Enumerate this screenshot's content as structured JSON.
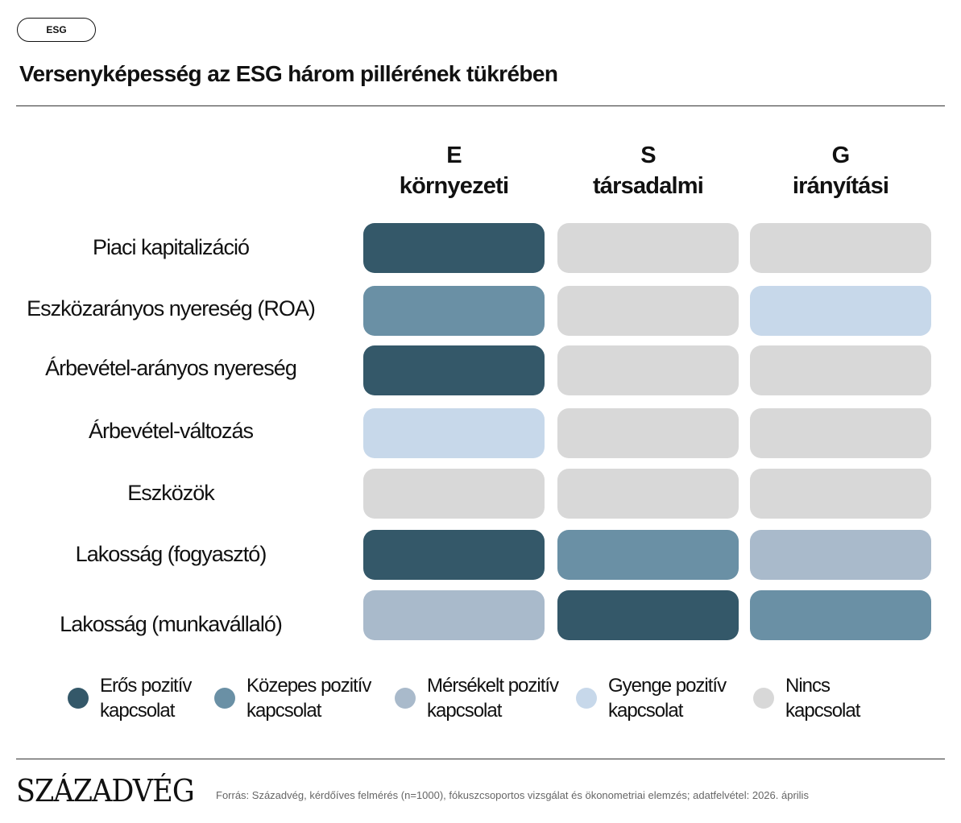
{
  "tag": "ESG",
  "title": "Versenyképesség az ESG három pillérének tükrében",
  "chart_data": {
    "type": "heatmap",
    "columns": [
      {
        "letter": "E",
        "name": "környezeti"
      },
      {
        "letter": "S",
        "name": "társadalmi"
      },
      {
        "letter": "G",
        "name": "irányítási"
      }
    ],
    "rows": [
      "Piaci kapitalizáció",
      "Eszközarányos nyereség (ROA)",
      "Árbevétel-arányos nyereség",
      "Árbevétel-változás",
      "Eszközök",
      "Lakosság (fogyasztó)",
      "Lakosság (munkavállaló)"
    ],
    "values": [
      [
        "eros",
        "nincs",
        "nincs"
      ],
      [
        "kozepes",
        "nincs",
        "gyenge"
      ],
      [
        "eros",
        "nincs",
        "nincs"
      ],
      [
        "gyenge",
        "nincs",
        "nincs"
      ],
      [
        "nincs",
        "nincs",
        "nincs"
      ],
      [
        "eros",
        "kozepes",
        "merseklet"
      ],
      [
        "merseklet",
        "eros",
        "kozepes"
      ]
    ],
    "legend": [
      {
        "key": "eros",
        "line1": "Erős pozitív",
        "line2": "kapcsolat",
        "color": "#345869"
      },
      {
        "key": "kozepes",
        "line1": "Közepes pozitív",
        "line2": "kapcsolat",
        "color": "#6a90a5"
      },
      {
        "key": "merseklet",
        "line1": "Mérsékelt pozitív",
        "line2": "kapcsolat",
        "color": "#a9bacb"
      },
      {
        "key": "gyenge",
        "line1": "Gyenge pozitív",
        "line2": "kapcsolat",
        "color": "#c7d8ea"
      },
      {
        "key": "nincs",
        "line1": "Nincs",
        "line2": "kapcsolat",
        "color": "#d8d8d8"
      }
    ]
  },
  "footer": {
    "brand": "SZÁZADVÉG",
    "source": "Forrás: Századvég, kérdőíves felmérés (n=1000), fókuszcsoportos vizsgálat és ökonometriai elemzés; adatfelvétel: 2026. április"
  }
}
